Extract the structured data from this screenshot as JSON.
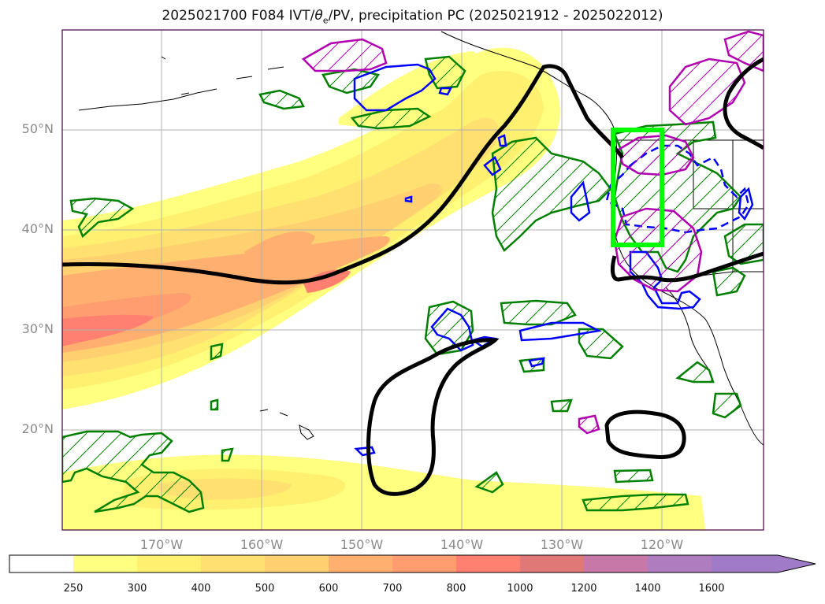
{
  "title": "2025021700 F084 IVT/θe/PV, precipitation PC (2025021912 - 2025022012)",
  "title_parts": {
    "prefix": "2025021700 F084 IVT/",
    "theta": "θ",
    "theta_sub": "e",
    "suffix": "/PV, precipitation PC (2025021912 - 2025022012)"
  },
  "map": {
    "lat_labels": [
      "50°N",
      "40°N",
      "30°N",
      "20°N"
    ],
    "lon_labels": [
      "170°W",
      "160°W",
      "150°W",
      "140°W",
      "130°W",
      "120°W"
    ],
    "grid": true,
    "colors": {
      "land_outline": "#000000",
      "contour_black": "#000000",
      "contour_green": "#008000",
      "contour_blue": "#0000ff",
      "contour_magenta": "#b000b0",
      "box_lime": "#00ff00"
    }
  },
  "colorbar": {
    "labels": [
      "250",
      "300",
      "400",
      "500",
      "600",
      "700",
      "800",
      "1000",
      "1200",
      "1400",
      "1600"
    ],
    "colors": [
      "#ffffff",
      "#ffff80",
      "#fff070",
      "#ffe070",
      "#ffd070",
      "#ffb070",
      "#ff9c70",
      "#ff8070",
      "#e07878",
      "#c878a8",
      "#b07cc0",
      "#a07cc8"
    ],
    "extend": "max"
  }
}
